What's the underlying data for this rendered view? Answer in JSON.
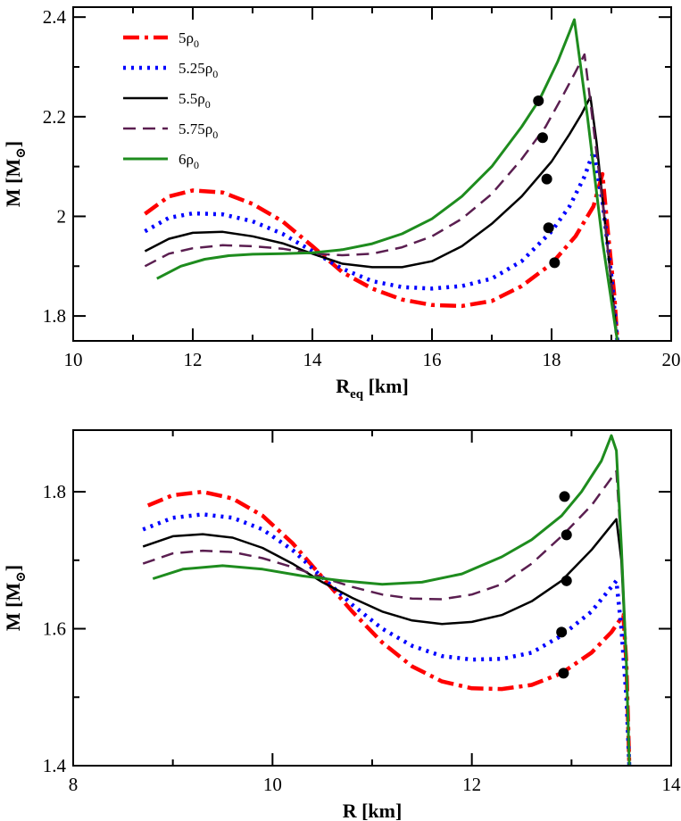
{
  "chart_data": [
    {
      "type": "line",
      "xlabel": "R",
      "xlabel_sub": "eq",
      "xlabel_unit": "[km]",
      "ylabel": "M [M",
      "ylabel_sub": "⊙",
      "ylabel_close": "]",
      "xlim": [
        10,
        20
      ],
      "ylim": [
        1.75,
        2.42
      ],
      "xticks": [
        10,
        12,
        14,
        16,
        18,
        20
      ],
      "xtick_labels": [
        "10",
        "12",
        "14",
        "16",
        "18",
        "20"
      ],
      "yticks": [
        1.8,
        2.0,
        2.2,
        2.4
      ],
      "ytick_labels": [
        "1.8",
        "2",
        "2.2",
        "2.4"
      ],
      "legend_position": "top-left",
      "grid": false,
      "series": [
        {
          "name": "5ρ",
          "name_sub": "0",
          "color": "#ff0000",
          "dash": "18,6,4,6",
          "width": 4.5,
          "x": [
            11.2,
            11.6,
            12.0,
            12.5,
            13.0,
            13.5,
            14.0,
            14.5,
            15.0,
            15.5,
            16.0,
            16.5,
            17.0,
            17.5,
            18.0,
            18.4,
            18.7,
            18.85,
            18.95,
            19.05,
            19.1
          ],
          "y": [
            2.005,
            2.04,
            2.052,
            2.048,
            2.025,
            1.99,
            1.94,
            1.888,
            1.855,
            1.833,
            1.822,
            1.82,
            1.83,
            1.86,
            1.905,
            1.96,
            2.02,
            2.085,
            1.96,
            1.84,
            1.75
          ]
        },
        {
          "name": "5.25ρ",
          "name_sub": "0",
          "color": "#0000ff",
          "dash": "3,6",
          "width": 4.5,
          "x": [
            11.2,
            11.6,
            12.0,
            12.5,
            13.0,
            13.5,
            14.0,
            14.5,
            15.0,
            15.5,
            16.0,
            16.5,
            17.0,
            17.5,
            18.0,
            18.3,
            18.55,
            18.7,
            18.85,
            19.0,
            19.1
          ],
          "y": [
            1.97,
            1.997,
            2.006,
            2.004,
            1.99,
            1.965,
            1.93,
            1.895,
            1.87,
            1.858,
            1.855,
            1.86,
            1.875,
            1.91,
            1.97,
            2.02,
            2.08,
            2.13,
            2.03,
            1.88,
            1.75
          ]
        },
        {
          "name": "5.5ρ",
          "name_sub": "0",
          "color": "#000000",
          "dash": "",
          "width": 2.5,
          "x": [
            11.2,
            11.6,
            12.0,
            12.5,
            13.0,
            13.5,
            14.0,
            14.5,
            15.0,
            15.5,
            16.0,
            16.5,
            17.0,
            17.5,
            18.0,
            18.3,
            18.5,
            18.65,
            18.75,
            18.9,
            19.1
          ],
          "y": [
            1.93,
            1.955,
            1.967,
            1.969,
            1.96,
            1.946,
            1.925,
            1.905,
            1.898,
            1.898,
            1.91,
            1.94,
            1.985,
            2.04,
            2.11,
            2.165,
            2.205,
            2.24,
            2.15,
            1.98,
            1.75
          ]
        },
        {
          "name": "5.75ρ",
          "name_sub": "0",
          "color": "#5a1e50",
          "dash": "14,8",
          "width": 2.5,
          "x": [
            11.2,
            11.6,
            12.0,
            12.5,
            13.0,
            13.5,
            14.0,
            14.5,
            15.0,
            15.5,
            16.0,
            16.5,
            17.0,
            17.5,
            17.9,
            18.2,
            18.4,
            18.55,
            18.7,
            18.9,
            19.1
          ],
          "y": [
            1.9,
            1.925,
            1.936,
            1.942,
            1.94,
            1.935,
            1.925,
            1.922,
            1.925,
            1.938,
            1.96,
            1.995,
            2.045,
            2.115,
            2.18,
            2.245,
            2.29,
            2.325,
            2.18,
            1.98,
            1.75
          ]
        },
        {
          "name": "6ρ",
          "name_sub": "0",
          "color": "#1e8c1e",
          "dash": "",
          "width": 3,
          "x": [
            11.4,
            11.8,
            12.2,
            12.6,
            13.0,
            13.5,
            14.0,
            14.5,
            15.0,
            15.5,
            16.0,
            16.5,
            17.0,
            17.5,
            17.8,
            18.1,
            18.3,
            18.38,
            18.6,
            18.85,
            19.1
          ],
          "y": [
            1.875,
            1.9,
            1.914,
            1.921,
            1.924,
            1.925,
            1.927,
            1.933,
            1.945,
            1.965,
            1.995,
            2.04,
            2.1,
            2.18,
            2.235,
            2.31,
            2.37,
            2.395,
            2.2,
            1.95,
            1.75
          ]
        }
      ],
      "markers": {
        "color": "#000000",
        "x": [
          17.78,
          17.85,
          17.92,
          17.95,
          18.05
        ],
        "y": [
          2.232,
          2.158,
          2.075,
          1.977,
          1.907
        ]
      }
    },
    {
      "type": "line",
      "xlabel": "R",
      "xlabel_sub": "",
      "xlabel_unit": "[km]",
      "ylabel": "M [M",
      "ylabel_sub": "⊙",
      "ylabel_close": "]",
      "xlim": [
        8,
        14
      ],
      "ylim": [
        1.4,
        1.89
      ],
      "xticks": [
        8,
        10,
        12,
        14
      ],
      "xtick_labels": [
        "8",
        "10",
        "12",
        "14"
      ],
      "yticks": [
        1.4,
        1.6,
        1.8
      ],
      "ytick_labels": [
        "1.4",
        "1.6",
        "1.8"
      ],
      "legend_position": "none",
      "grid": false,
      "series": [
        {
          "name": "",
          "color": "#ff0000",
          "dash": "18,6,4,6",
          "width": 4.5,
          "x": [
            8.75,
            9.0,
            9.3,
            9.6,
            9.9,
            10.2,
            10.5,
            10.8,
            11.1,
            11.4,
            11.7,
            12.0,
            12.3,
            12.6,
            12.9,
            13.2,
            13.4,
            13.52,
            13.55,
            13.58
          ],
          "y": [
            1.78,
            1.795,
            1.8,
            1.79,
            1.765,
            1.725,
            1.675,
            1.625,
            1.58,
            1.545,
            1.523,
            1.513,
            1.512,
            1.518,
            1.535,
            1.565,
            1.595,
            1.62,
            1.55,
            1.4
          ]
        },
        {
          "name": "",
          "color": "#0000ff",
          "dash": "3,6",
          "width": 4.5,
          "x": [
            8.7,
            9.0,
            9.3,
            9.6,
            9.9,
            10.2,
            10.5,
            10.8,
            11.1,
            11.4,
            11.7,
            12.0,
            12.3,
            12.6,
            12.9,
            13.2,
            13.45,
            13.5,
            13.55,
            13.58
          ],
          "y": [
            1.745,
            1.762,
            1.767,
            1.762,
            1.745,
            1.715,
            1.675,
            1.635,
            1.6,
            1.575,
            1.56,
            1.555,
            1.556,
            1.565,
            1.59,
            1.625,
            1.67,
            1.6,
            1.5,
            1.4
          ]
        },
        {
          "name": "",
          "color": "#000000",
          "dash": "",
          "width": 2.5,
          "x": [
            8.7,
            9.0,
            9.3,
            9.6,
            9.9,
            10.2,
            10.5,
            10.8,
            11.1,
            11.4,
            11.7,
            12.0,
            12.3,
            12.6,
            12.9,
            13.2,
            13.45,
            13.5,
            13.55,
            13.58
          ],
          "y": [
            1.72,
            1.735,
            1.738,
            1.733,
            1.718,
            1.695,
            1.668,
            1.645,
            1.625,
            1.612,
            1.607,
            1.61,
            1.62,
            1.64,
            1.67,
            1.715,
            1.76,
            1.7,
            1.55,
            1.4
          ]
        },
        {
          "name": "",
          "color": "#5a1e50",
          "dash": "14,8",
          "width": 2.5,
          "x": [
            8.7,
            9.0,
            9.3,
            9.6,
            9.9,
            10.2,
            10.5,
            10.8,
            11.1,
            11.4,
            11.7,
            12.0,
            12.3,
            12.6,
            12.9,
            13.2,
            13.45,
            13.5,
            13.55,
            13.58
          ],
          "y": [
            1.695,
            1.71,
            1.714,
            1.712,
            1.703,
            1.69,
            1.675,
            1.661,
            1.65,
            1.644,
            1.643,
            1.65,
            1.665,
            1.695,
            1.735,
            1.78,
            1.83,
            1.72,
            1.55,
            1.4
          ]
        },
        {
          "name": "",
          "color": "#1e8c1e",
          "dash": "",
          "width": 3,
          "x": [
            8.8,
            9.1,
            9.5,
            9.9,
            10.3,
            10.7,
            11.1,
            11.5,
            11.9,
            12.3,
            12.6,
            12.9,
            13.1,
            13.3,
            13.4,
            13.45,
            13.5,
            13.55,
            13.58
          ],
          "y": [
            1.673,
            1.687,
            1.692,
            1.687,
            1.677,
            1.67,
            1.665,
            1.668,
            1.68,
            1.705,
            1.73,
            1.765,
            1.8,
            1.845,
            1.882,
            1.86,
            1.72,
            1.55,
            1.4
          ]
        }
      ],
      "markers": {
        "color": "#000000",
        "x": [
          12.93,
          12.95,
          12.95,
          12.9,
          12.92
        ],
        "y": [
          1.793,
          1.737,
          1.67,
          1.595,
          1.535
        ]
      }
    }
  ]
}
